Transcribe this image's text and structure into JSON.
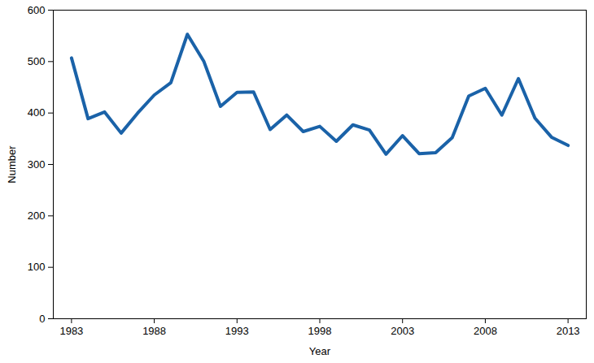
{
  "chart_data": {
    "type": "line",
    "x": [
      1983,
      1984,
      1985,
      1986,
      1987,
      1988,
      1989,
      1990,
      1991,
      1992,
      1993,
      1994,
      1995,
      1996,
      1997,
      1998,
      1999,
      2000,
      2001,
      2002,
      2003,
      2004,
      2005,
      2006,
      2007,
      2008,
      2009,
      2010,
      2011,
      2012,
      2013
    ],
    "values": [
      507,
      389,
      402,
      361,
      400,
      435,
      459,
      553,
      500,
      413,
      440,
      441,
      368,
      396,
      364,
      374,
      345,
      377,
      367,
      320,
      356,
      321,
      323,
      352,
      433,
      448,
      396,
      467,
      390,
      353,
      337
    ],
    "color": "#1a62a8",
    "xlabel": "Year",
    "ylabel": "Number",
    "xlim": [
      1981.9,
      2014.1
    ],
    "xticks": [
      1983,
      1988,
      1993,
      1998,
      2003,
      2008,
      2013
    ],
    "ylim": [
      0,
      600
    ],
    "yticks": [
      0,
      100,
      200,
      300,
      400,
      500,
      600
    ],
    "grid": false
  }
}
